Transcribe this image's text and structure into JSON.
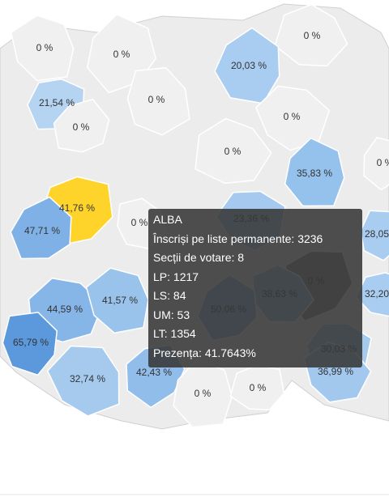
{
  "map": {
    "regions": [
      {
        "label": "0 %"
      },
      {
        "label": "0 %"
      },
      {
        "label": "0 %"
      },
      {
        "label": "20,03 %"
      },
      {
        "label": "21,54 %"
      },
      {
        "label": "0 %"
      },
      {
        "label": "0 %"
      },
      {
        "label": "0 %"
      },
      {
        "label": "0 %"
      },
      {
        "label": "0 %"
      },
      {
        "label": "35,83 %"
      },
      {
        "label": "41,76 %"
      },
      {
        "label": "0 %"
      },
      {
        "label": "47,71 %"
      },
      {
        "label": "23,36 %"
      },
      {
        "label": "28,05 %"
      },
      {
        "label": "44,59 %"
      },
      {
        "label": "41,57 %"
      },
      {
        "label": "0 %"
      },
      {
        "label": "38,63 %"
      },
      {
        "label": "50,06 %"
      },
      {
        "label": "32,20 %"
      },
      {
        "label": "65,79 %"
      },
      {
        "label": "30,03 %"
      },
      {
        "label": "32,74 %"
      },
      {
        "label": "42,43 %"
      },
      {
        "label": "36,99 %"
      },
      {
        "label": "0 %"
      },
      {
        "label": "0 %"
      }
    ]
  },
  "tooltip": {
    "title": "ALBA",
    "lines": [
      "Înscriși pe liste permanente: 3236",
      "Secții de votare: 8",
      "LP: 1217",
      "LS: 84",
      "UM: 53",
      "LT: 1354",
      "Prezența: 41.7643%"
    ]
  }
}
